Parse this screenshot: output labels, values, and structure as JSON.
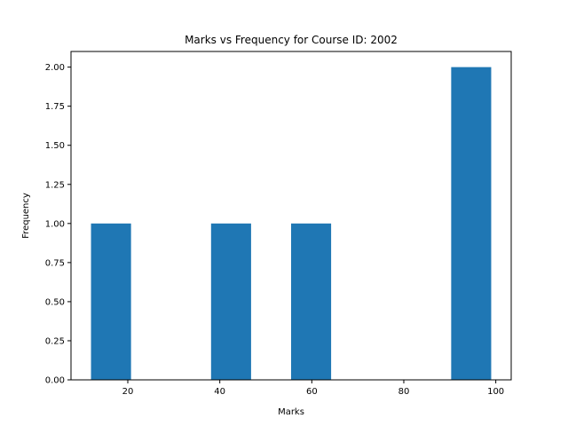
{
  "chart_data": {
    "type": "bar",
    "title": "Marks vs Frequency for Course ID:  2002",
    "xlabel": "Marks",
    "ylabel": "Frequency",
    "bins": [
      {
        "start": 12.0,
        "end": 20.7,
        "value": 1
      },
      {
        "start": 20.7,
        "end": 29.4,
        "value": 0
      },
      {
        "start": 29.4,
        "end": 38.1,
        "value": 0
      },
      {
        "start": 38.1,
        "end": 46.8,
        "value": 1
      },
      {
        "start": 46.8,
        "end": 55.5,
        "value": 0
      },
      {
        "start": 55.5,
        "end": 64.2,
        "value": 1
      },
      {
        "start": 64.2,
        "end": 72.9,
        "value": 0
      },
      {
        "start": 72.9,
        "end": 81.6,
        "value": 0
      },
      {
        "start": 81.6,
        "end": 90.3,
        "value": 0
      },
      {
        "start": 90.3,
        "end": 99.0,
        "value": 2
      }
    ],
    "xlim": [
      7.65,
      103.35
    ],
    "ylim": [
      0,
      2.1
    ],
    "xticks": [
      20,
      40,
      60,
      80,
      100
    ],
    "xtick_labels": [
      "20",
      "40",
      "60",
      "80",
      "100"
    ],
    "yticks": [
      0,
      0.25,
      0.5,
      0.75,
      1.0,
      1.25,
      1.5,
      1.75,
      2.0
    ],
    "ytick_labels": [
      "0.00",
      "0.25",
      "0.50",
      "0.75",
      "1.00",
      "1.25",
      "1.50",
      "1.75",
      "2.00"
    ],
    "bar_color": "#1f77b4",
    "grid": false,
    "legend": "none"
  }
}
